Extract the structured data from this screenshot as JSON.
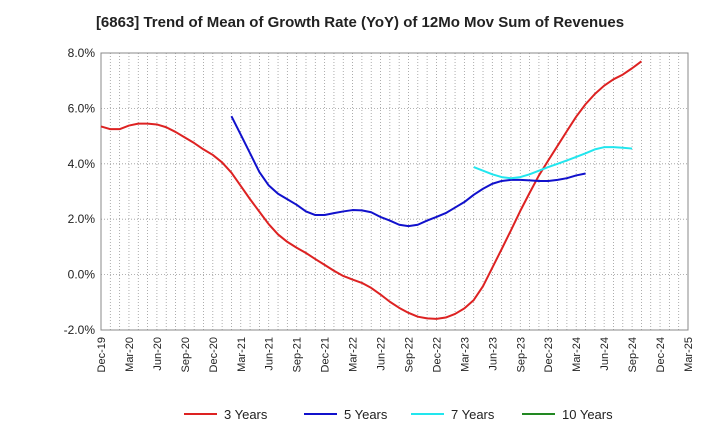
{
  "chart_data": {
    "type": "line",
    "title": "[6863]  Trend of Mean of Growth Rate (YoY) of 12Mo Mov Sum of Revenues",
    "xlabel": "",
    "ylabel": "",
    "ylim": [
      -2.0,
      8.0
    ],
    "y_ticks": [
      -2.0,
      0.0,
      2.0,
      4.0,
      6.0,
      8.0
    ],
    "y_tick_labels": [
      "-2.0%",
      "0.0%",
      "2.0%",
      "4.0%",
      "6.0%",
      "8.0%"
    ],
    "x_start": "Dec-19",
    "x_end": "Mar-25",
    "x_tick_labels": [
      "Dec-19",
      "Mar-20",
      "Jun-20",
      "Sep-20",
      "Dec-20",
      "Mar-21",
      "Jun-21",
      "Sep-21",
      "Dec-21",
      "Mar-22",
      "Jun-22",
      "Sep-22",
      "Dec-22",
      "Mar-23",
      "Jun-23",
      "Sep-23",
      "Dec-23",
      "Mar-24",
      "Jun-24",
      "Sep-24",
      "Dec-24",
      "Mar-25"
    ],
    "grid": true,
    "legend_position": "bottom",
    "series": [
      {
        "name": "3 Years",
        "color": "#dd2222",
        "start_index": 0,
        "values": [
          5.35,
          5.25,
          5.25,
          5.38,
          5.45,
          5.45,
          5.42,
          5.32,
          5.15,
          4.95,
          4.75,
          4.52,
          4.32,
          4.05,
          3.68,
          3.2,
          2.72,
          2.27,
          1.82,
          1.45,
          1.18,
          0.97,
          0.78,
          0.56,
          0.35,
          0.14,
          -0.05,
          -0.18,
          -0.3,
          -0.48,
          -0.72,
          -0.98,
          -1.2,
          -1.38,
          -1.52,
          -1.58,
          -1.6,
          -1.55,
          -1.42,
          -1.22,
          -0.92,
          -0.42,
          0.25,
          0.92,
          1.6,
          2.3,
          2.95,
          3.58,
          4.12,
          4.65,
          5.18,
          5.7,
          6.15,
          6.52,
          6.82,
          7.05,
          7.22,
          7.45,
          7.7
        ]
      },
      {
        "name": "5 Years",
        "color": "#1111cc",
        "start_index": 14,
        "values": [
          5.72,
          5.05,
          4.38,
          3.7,
          3.22,
          2.92,
          2.72,
          2.52,
          2.28,
          2.15,
          2.15,
          2.22,
          2.28,
          2.33,
          2.32,
          2.25,
          2.08,
          1.95,
          1.8,
          1.75,
          1.8,
          1.95,
          2.08,
          2.22,
          2.42,
          2.62,
          2.88,
          3.1,
          3.28,
          3.38,
          3.42,
          3.42,
          3.4,
          3.38,
          3.38,
          3.42,
          3.48,
          3.58,
          3.65
        ]
      },
      {
        "name": "7 Years",
        "color": "#22e6ee",
        "start_index": 40,
        "values": [
          3.88,
          3.75,
          3.62,
          3.52,
          3.48,
          3.52,
          3.62,
          3.75,
          3.88,
          4.0,
          4.12,
          4.25,
          4.38,
          4.52,
          4.6,
          4.6,
          4.58,
          4.55
        ]
      },
      {
        "name": "10 Years",
        "color": "#228822",
        "start_index": 0,
        "values": []
      }
    ]
  }
}
